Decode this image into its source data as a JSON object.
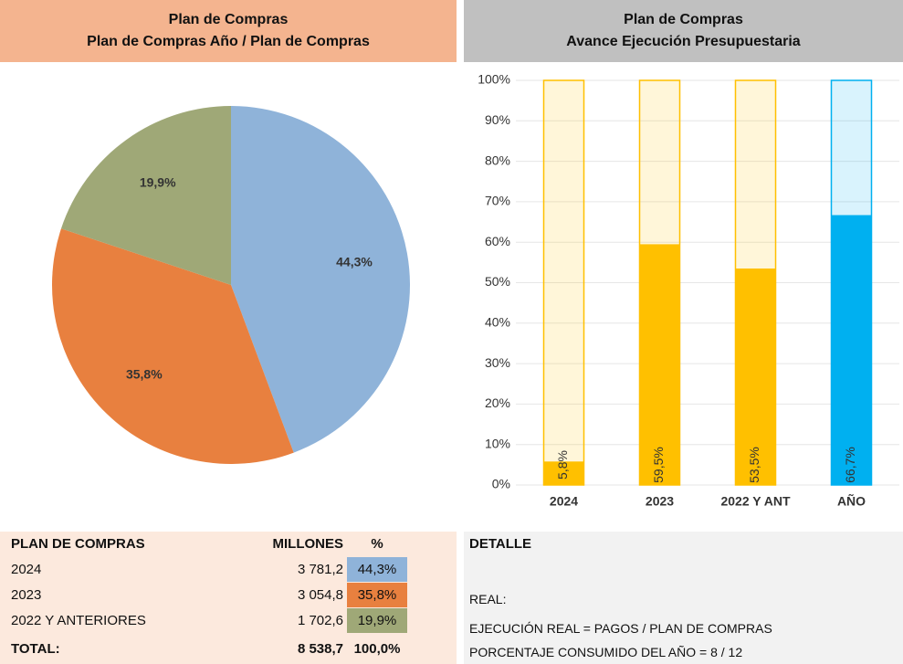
{
  "chart_data": [
    {
      "type": "pie",
      "title": "Plan de Compras",
      "subtitle": "Plan de Compras Año / Plan de Compras",
      "values": [
        44.3,
        35.8,
        19.9
      ],
      "value_labels": [
        "44,3%",
        "35,8%",
        "19,9%"
      ],
      "colors": [
        "#8fb3d9",
        "#e8803f",
        "#9fa877"
      ]
    },
    {
      "type": "bar",
      "title": "Plan de Compras",
      "subtitle": "Avance Ejecución Presupuestaria",
      "categories": [
        "2024",
        "2023",
        "2022 Y ANT",
        "AÑO"
      ],
      "values": [
        5.8,
        59.5,
        53.5,
        66.7
      ],
      "value_labels": [
        "5,8%",
        "59,5%",
        "53,5%",
        "66,7%"
      ],
      "colors": [
        "#ffc000",
        "#ffc000",
        "#ffc000",
        "#00b0f0"
      ],
      "ylim": [
        0,
        100
      ],
      "yticks": [
        {
          "value": 0,
          "label": "0%"
        },
        {
          "value": 10,
          "label": "10%"
        },
        {
          "value": 20,
          "label": "20%"
        },
        {
          "value": 30,
          "label": "30%"
        },
        {
          "value": 40,
          "label": "40%"
        },
        {
          "value": 50,
          "label": "50%"
        },
        {
          "value": 60,
          "label": "60%"
        },
        {
          "value": 70,
          "label": "70%"
        },
        {
          "value": 80,
          "label": "80%"
        },
        {
          "value": 90,
          "label": "90%"
        },
        {
          "value": 100,
          "label": "100%"
        }
      ],
      "grid": true
    }
  ],
  "table": {
    "header": [
      "PLAN DE COMPRAS",
      "MILLONES",
      "%"
    ],
    "rows": [
      [
        "2024",
        "3 781,2",
        "44,3%"
      ],
      [
        "2023",
        "3 054,8",
        "35,8%"
      ],
      [
        "2022 Y ANTERIORES",
        "1 702,6",
        "19,9%"
      ]
    ],
    "total": [
      "TOTAL:",
      "8 538,7",
      "100,0%"
    ]
  },
  "detail": {
    "header": "DETALLE",
    "lines": [
      "REAL:",
      "EJECUCIÓN REAL = PAGOS / PLAN DE COMPRAS",
      "PORCENTAJE CONSUMIDO DEL AÑO = 8 / 12"
    ]
  }
}
